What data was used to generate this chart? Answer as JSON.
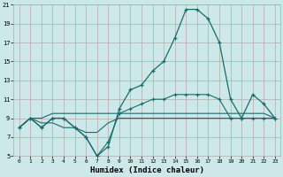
{
  "xlabel": "Humidex (Indice chaleur)",
  "xlim": [
    -0.5,
    23.5
  ],
  "ylim": [
    5,
    21
  ],
  "yticks": [
    5,
    7,
    9,
    11,
    13,
    15,
    17,
    19,
    21
  ],
  "xticks": [
    0,
    1,
    2,
    3,
    4,
    5,
    6,
    7,
    8,
    9,
    10,
    11,
    12,
    13,
    14,
    15,
    16,
    17,
    18,
    19,
    20,
    21,
    22,
    23
  ],
  "bg_color": "#cce8e8",
  "grid_color": "#b8a8a8",
  "line_color": "#1a6b6b",
  "series_main": [
    8,
    9,
    8,
    9,
    9,
    8,
    7,
    5,
    6,
    10,
    12,
    12.5,
    14,
    15,
    17.5,
    20.5,
    20.5,
    19.5,
    17,
    11,
    9,
    11.5,
    10.5,
    9
  ],
  "series_line2": [
    8,
    9,
    8,
    9,
    9,
    8,
    7,
    5,
    6.5,
    9.5,
    10,
    10.5,
    11,
    11,
    11.5,
    11.5,
    11.5,
    11.5,
    11,
    9,
    9,
    9,
    9,
    9
  ],
  "series_line3": [
    8,
    9,
    9,
    9.5,
    9.5,
    9.5,
    9.5,
    9.5,
    9.5,
    9.5,
    9.5,
    9.5,
    9.5,
    9.5,
    9.5,
    9.5,
    9.5,
    9.5,
    9.5,
    9.5,
    9.5,
    9.5,
    9.5,
    9
  ],
  "series_line4": [
    8,
    9,
    8.5,
    8.5,
    8,
    8,
    7.5,
    7.5,
    8.5,
    9,
    9,
    9,
    9,
    9,
    9,
    9,
    9,
    9,
    9,
    9,
    9,
    9,
    9,
    9
  ]
}
